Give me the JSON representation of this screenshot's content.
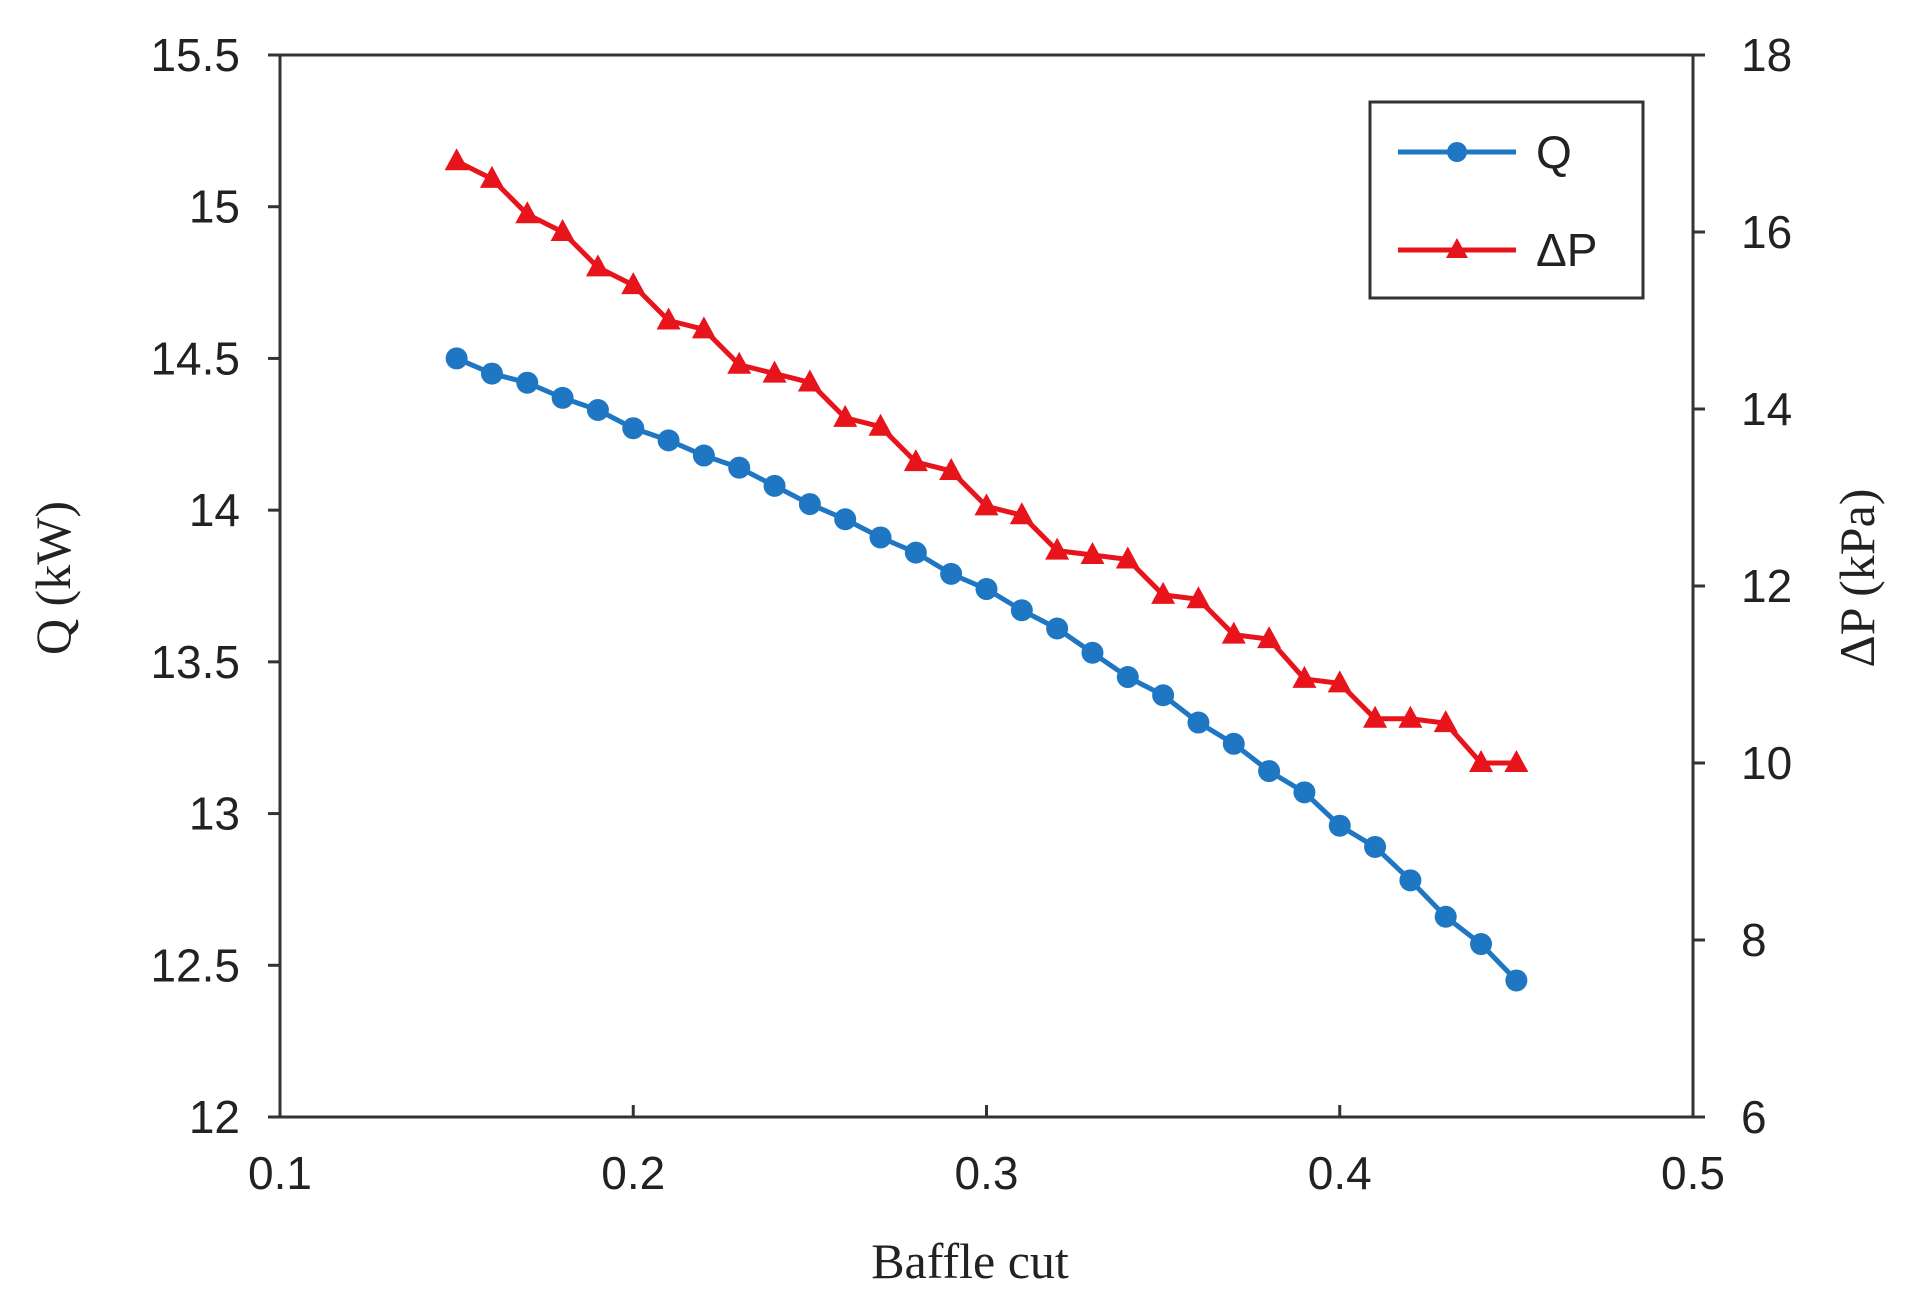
{
  "chart_data": {
    "type": "line",
    "x": [
      0.15,
      0.16,
      0.17,
      0.18,
      0.19,
      0.2,
      0.21,
      0.22,
      0.23,
      0.24,
      0.25,
      0.26,
      0.27,
      0.28,
      0.29,
      0.3,
      0.31,
      0.32,
      0.33,
      0.34,
      0.35,
      0.36,
      0.37,
      0.38,
      0.39,
      0.4,
      0.41,
      0.42,
      0.43,
      0.44,
      0.45
    ],
    "series": [
      {
        "name": "Q",
        "axis": "left",
        "color": "#1f77c4",
        "marker": "circle",
        "values": [
          14.5,
          14.45,
          14.42,
          14.37,
          14.33,
          14.27,
          14.23,
          14.18,
          14.14,
          14.08,
          14.02,
          13.97,
          13.91,
          13.86,
          13.79,
          13.74,
          13.67,
          13.61,
          13.53,
          13.45,
          13.39,
          13.3,
          13.23,
          13.14,
          13.07,
          12.96,
          12.89,
          12.78,
          12.66,
          12.57,
          12.45
        ]
      },
      {
        "name": "ΔP",
        "axis": "right",
        "color": "#e8141c",
        "marker": "triangle",
        "values": [
          16.8,
          16.6,
          16.2,
          16.0,
          15.6,
          15.4,
          15.0,
          14.9,
          14.5,
          14.4,
          14.3,
          13.9,
          13.8,
          13.4,
          13.3,
          12.9,
          12.8,
          12.4,
          12.35,
          12.3,
          11.9,
          11.85,
          11.45,
          11.4,
          10.95,
          10.9,
          10.5,
          10.5,
          10.45,
          10.0,
          10.0
        ]
      }
    ],
    "xlabel": "Baffle cut",
    "ylabel": "Q (kW)",
    "y2label": "ΔP (kPa)",
    "xlim": [
      0.1,
      0.5
    ],
    "ylim": [
      12,
      15.5
    ],
    "y2lim": [
      6,
      18
    ],
    "xticks": [
      "0.1",
      "0.2",
      "0.3",
      "0.4",
      "0.5"
    ],
    "yticks": [
      "12",
      "12.5",
      "13",
      "13.5",
      "14",
      "14.5",
      "15",
      "15.5"
    ],
    "y2ticks": [
      "6",
      "8",
      "10",
      "12",
      "14",
      "16",
      "18"
    ],
    "legend": {
      "position": "top-right",
      "entries": [
        "Q",
        "ΔP"
      ]
    },
    "grid": false
  }
}
